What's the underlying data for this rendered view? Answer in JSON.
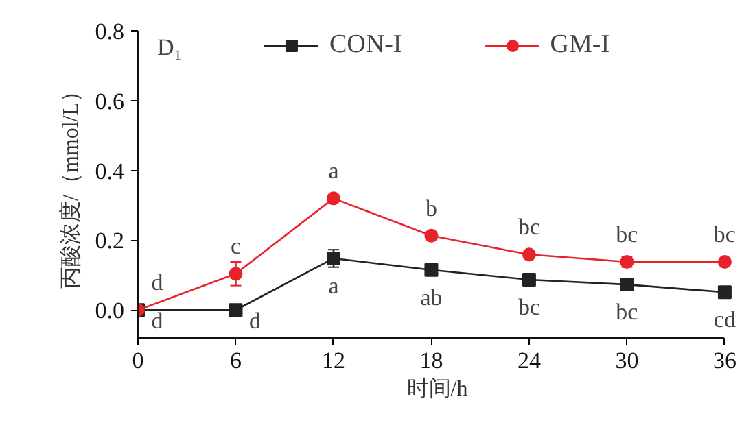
{
  "chart_data": {
    "type": "line",
    "title": "D₁",
    "xlabel": "时间/h",
    "ylabel": "丙酸浓度/（mmol/L）",
    "x": [
      0,
      6,
      12,
      18,
      24,
      30,
      36
    ],
    "series": [
      {
        "name": "CON-I",
        "color": "#222222",
        "marker": "square",
        "values": [
          0,
          0,
          0.148,
          0.115,
          0.087,
          0.073,
          0.051
        ],
        "errors": [
          null,
          null,
          0.025,
          null,
          null,
          null,
          null
        ]
      },
      {
        "name": "GM-I",
        "color": "#e8222a",
        "marker": "circle",
        "values": [
          0,
          0.104,
          0.32,
          0.213,
          0.159,
          0.138,
          0.138
        ],
        "errors": [
          null,
          0.034,
          null,
          null,
          null,
          0.015,
          null
        ]
      }
    ],
    "annotations": [
      {
        "text": "d",
        "x": 0,
        "y": 0
      },
      {
        "text": "d",
        "x": 0,
        "y": 0
      },
      {
        "text": "c",
        "x": 6,
        "y": 0.104
      },
      {
        "text": "d",
        "x": 6,
        "y": 0
      },
      {
        "text": "a",
        "x": 12,
        "y": 0.32
      },
      {
        "text": "a",
        "x": 12,
        "y": 0.148
      },
      {
        "text": "b",
        "x": 18,
        "y": 0.213
      },
      {
        "text": "ab",
        "x": 18,
        "y": 0.115
      },
      {
        "text": "bc",
        "x": 24,
        "y": 0.159
      },
      {
        "text": "bc",
        "x": 24,
        "y": 0.087
      },
      {
        "text": "bc",
        "x": 30,
        "y": 0.138
      },
      {
        "text": "bc",
        "x": 30,
        "y": 0.073
      },
      {
        "text": "bc",
        "x": 36,
        "y": 0.138
      },
      {
        "text": "cd",
        "x": 36,
        "y": 0.051
      }
    ],
    "xlim": [
      0,
      36
    ],
    "ylim": [
      -0.08,
      0.8
    ],
    "xticks": [
      0,
      6,
      12,
      18,
      24,
      30,
      36
    ],
    "yticks": [
      {
        "value": 0,
        "label": "0.0"
      },
      0.2,
      0.4,
      0.6,
      0.8
    ],
    "legend": "top",
    "grid": false
  }
}
